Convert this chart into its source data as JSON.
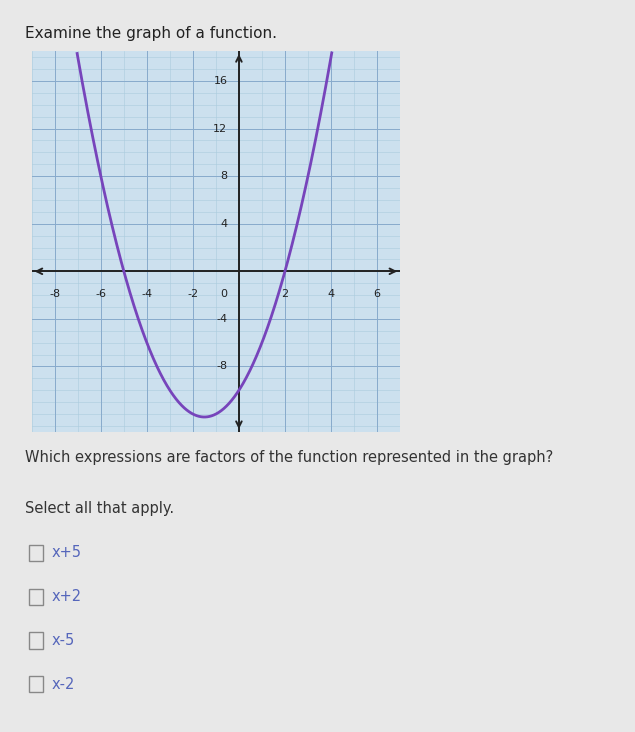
{
  "title": "Examine the graph of a function.",
  "question": "Which expressions are factors of the function represented in the graph?",
  "instruction": "Select all that apply.",
  "choices": [
    "x+5",
    "x+2",
    "x-5",
    "x-2"
  ],
  "roots": [
    -5,
    2
  ],
  "curve_color": "#7744bb",
  "page_bg": "#e8e8e8",
  "graph_bg": "#cce0ee",
  "grid_minor_color": "#aaccdd",
  "grid_major_color": "#88aacc",
  "axis_color": "#222222",
  "text_color": "#222222",
  "question_color": "#333333",
  "choice_color": "#5566bb",
  "checkbox_color": "#888888",
  "xlim": [
    -9.0,
    7.0
  ],
  "ylim": [
    -13.5,
    18.5
  ],
  "xticks": [
    -8,
    -6,
    -4,
    -2,
    2,
    4,
    6
  ],
  "yticks": [
    -8,
    -4,
    4,
    8,
    12,
    16
  ],
  "title_fontsize": 11,
  "label_fontsize": 8,
  "question_fontsize": 10.5,
  "choice_fontsize": 10.5
}
